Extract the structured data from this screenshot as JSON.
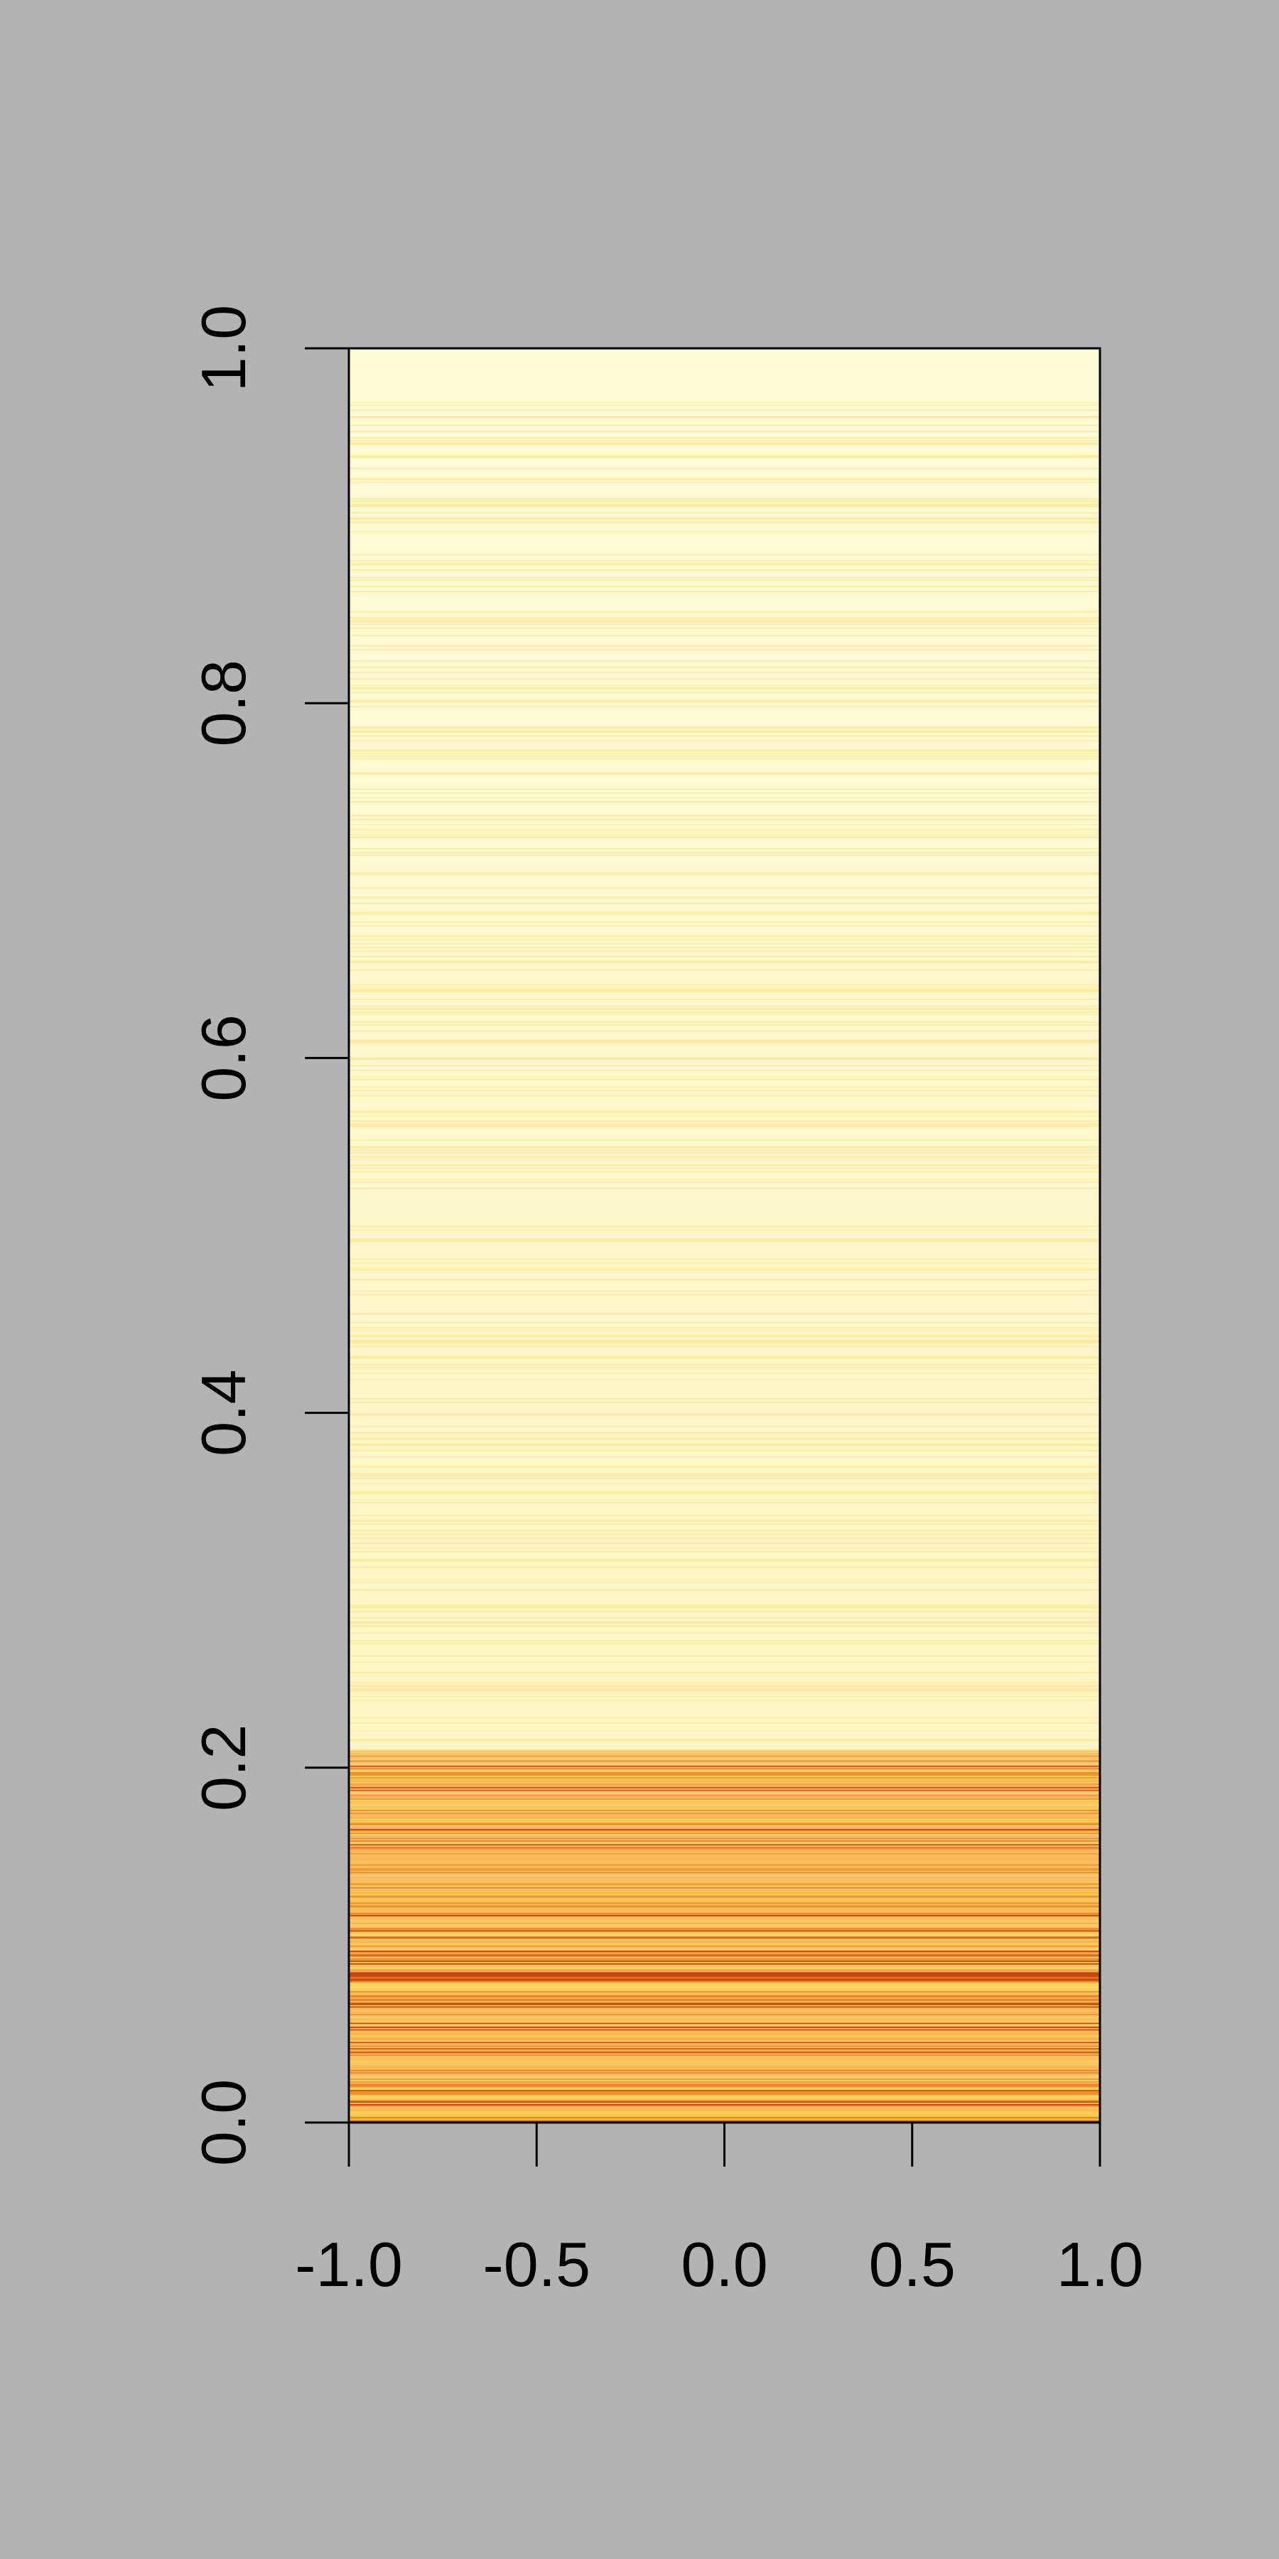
{
  "chart_data": {
    "type": "heatmap",
    "title": "",
    "xlabel": "",
    "ylabel": "",
    "xlim": [
      -1.0,
      1.0
    ],
    "ylim": [
      0.0,
      1.0
    ],
    "x_ticks": [
      {
        "value": -1.0,
        "label": "-1.0"
      },
      {
        "value": -0.5,
        "label": "-0.5"
      },
      {
        "value": 0.0,
        "label": "0.0"
      },
      {
        "value": 0.5,
        "label": "0.5"
      },
      {
        "value": 1.0,
        "label": "1.0"
      }
    ],
    "y_ticks": [
      {
        "value": 0.0,
        "label": "0.0"
      },
      {
        "value": 0.2,
        "label": "0.2"
      },
      {
        "value": 0.4,
        "label": "0.4"
      },
      {
        "value": 0.6,
        "label": "0.6"
      },
      {
        "value": 0.8,
        "label": "0.8"
      },
      {
        "value": 1.0,
        "label": "1.0"
      }
    ],
    "grid": false,
    "legend": "none",
    "colormap": "heat (dark orange at low y to pale yellow at high y)",
    "colors": {
      "background": "#b3b3b3",
      "frame": "#000000",
      "upper_band": "#fff7c2",
      "top_cap": "#fffdd6",
      "lower_band": "#f4a845",
      "lower_dark_stripe": "#c2410c"
    },
    "bands": [
      {
        "y_from": 0.0,
        "y_to": 0.21,
        "shade": "orange, dense dark stripes"
      },
      {
        "y_from": 0.21,
        "y_to": 0.97,
        "shade": "pale yellow, faint stripes"
      },
      {
        "y_from": 0.97,
        "y_to": 1.0,
        "shade": "lightest yellow"
      }
    ]
  }
}
